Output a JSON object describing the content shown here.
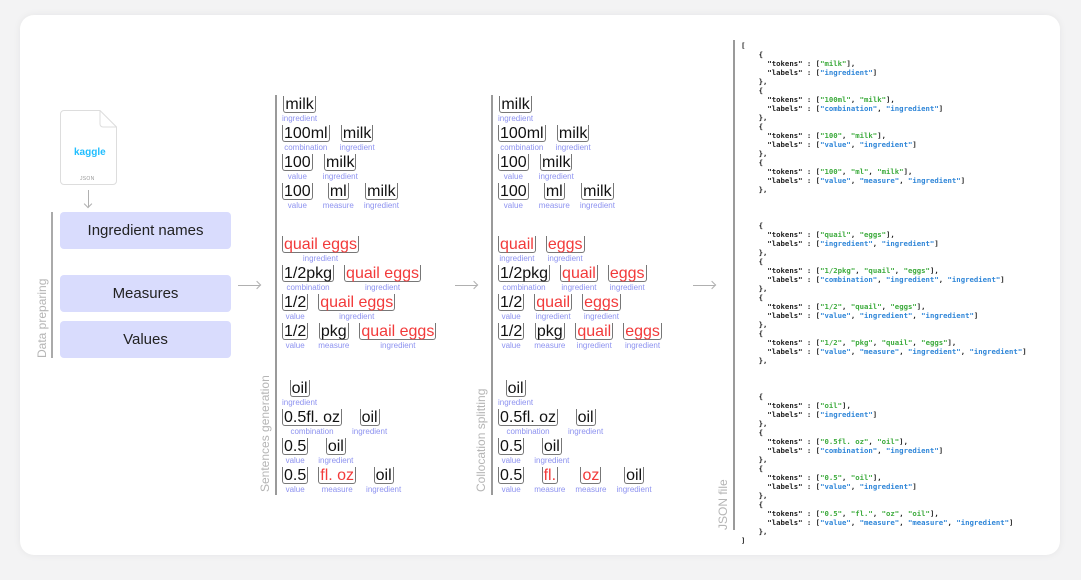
{
  "left": {
    "file_brand": "kaggle",
    "file_type": "JSON",
    "section_label": "Data preparing",
    "boxes": [
      "Ingredient names",
      "Measures",
      "Values"
    ]
  },
  "sentences_generation": {
    "label": "Sentences generation",
    "groups": [
      [
        [
          {
            "t": "milk",
            "l": "ingredient"
          }
        ],
        [
          {
            "t": "100ml",
            "l": "combination"
          },
          {
            "t": "milk",
            "l": "ingredient"
          }
        ],
        [
          {
            "t": "100",
            "l": "value"
          },
          {
            "t": "milk",
            "l": "ingredient"
          }
        ],
        [
          {
            "t": "100",
            "l": "value"
          },
          {
            "t": "ml",
            "l": "measure"
          },
          {
            "t": "milk",
            "l": "ingredient"
          }
        ]
      ],
      [
        [
          {
            "t": "quail eggs",
            "l": "ingredient",
            "red": true
          }
        ],
        [
          {
            "t": "1/2pkg",
            "l": "combination"
          },
          {
            "t": "quail eggs",
            "l": "ingredient",
            "red": true
          }
        ],
        [
          {
            "t": "1/2",
            "l": "value"
          },
          {
            "t": "quail eggs",
            "l": "ingredient",
            "red": true
          }
        ],
        [
          {
            "t": "1/2",
            "l": "value"
          },
          {
            "t": "pkg",
            "l": "measure"
          },
          {
            "t": "quail eggs",
            "l": "ingredient",
            "red": true
          }
        ]
      ],
      [
        [
          {
            "t": "oil",
            "l": "ingredient"
          }
        ],
        [
          {
            "t": "0.5fl. oz",
            "l": "combination"
          },
          {
            "t": "oil",
            "l": "ingredient"
          }
        ],
        [
          {
            "t": "0.5",
            "l": "value"
          },
          {
            "t": "oil",
            "l": "ingredient"
          }
        ],
        [
          {
            "t": "0.5",
            "l": "value"
          },
          {
            "t": "fl. oz",
            "l": "measure",
            "red": true
          },
          {
            "t": "oil",
            "l": "ingredient"
          }
        ]
      ]
    ]
  },
  "collocation_splitting": {
    "label": "Collocation splitting",
    "groups": [
      [
        [
          {
            "t": "milk",
            "l": "ingredient"
          }
        ],
        [
          {
            "t": "100ml",
            "l": "combination"
          },
          {
            "t": "milk",
            "l": "ingredient"
          }
        ],
        [
          {
            "t": "100",
            "l": "value"
          },
          {
            "t": "milk",
            "l": "ingredient"
          }
        ],
        [
          {
            "t": "100",
            "l": "value"
          },
          {
            "t": "ml",
            "l": "measure"
          },
          {
            "t": "milk",
            "l": "ingredient"
          }
        ]
      ],
      [
        [
          {
            "t": "quail",
            "l": "ingredient",
            "red": true
          },
          {
            "t": "eggs",
            "l": "ingredient",
            "red": true
          }
        ],
        [
          {
            "t": "1/2pkg",
            "l": "combination"
          },
          {
            "t": "quail",
            "l": "ingredient",
            "red": true
          },
          {
            "t": "eggs",
            "l": "ingredient",
            "red": true
          }
        ],
        [
          {
            "t": "1/2",
            "l": "value"
          },
          {
            "t": "quail",
            "l": "ingredient",
            "red": true
          },
          {
            "t": "eggs",
            "l": "ingredient",
            "red": true
          }
        ],
        [
          {
            "t": "1/2",
            "l": "value"
          },
          {
            "t": "pkg",
            "l": "measure"
          },
          {
            "t": "quail",
            "l": "ingredient",
            "red": true
          },
          {
            "t": "eggs",
            "l": "ingredient",
            "red": true
          }
        ]
      ],
      [
        [
          {
            "t": "oil",
            "l": "ingredient"
          }
        ],
        [
          {
            "t": "0.5fl. oz",
            "l": "combination"
          },
          {
            "t": "oil",
            "l": "ingredient"
          }
        ],
        [
          {
            "t": "0.5",
            "l": "value"
          },
          {
            "t": "oil",
            "l": "ingredient"
          }
        ],
        [
          {
            "t": "0.5",
            "l": "value"
          },
          {
            "t": "fl.",
            "l": "measure",
            "red": true
          },
          {
            "t": "oz",
            "l": "measure",
            "red": true
          },
          {
            "t": "oil",
            "l": "ingredient"
          }
        ]
      ]
    ]
  },
  "json_file": {
    "label": "JSON file",
    "groups": [
      [
        {
          "tokens": [
            "milk"
          ],
          "labels": [
            "ingredient"
          ]
        },
        {
          "tokens": [
            "100ml",
            "milk"
          ],
          "labels": [
            "combination",
            "ingredient"
          ]
        },
        {
          "tokens": [
            "100",
            "milk"
          ],
          "labels": [
            "value",
            "ingredient"
          ]
        },
        {
          "tokens": [
            "100",
            "ml",
            "milk"
          ],
          "labels": [
            "value",
            "measure",
            "ingredient"
          ]
        }
      ],
      [
        {
          "tokens": [
            "quail",
            "eggs"
          ],
          "labels": [
            "ingredient",
            "ingredient"
          ]
        },
        {
          "tokens": [
            "1/2pkg",
            "quail",
            "eggs"
          ],
          "labels": [
            "combination",
            "ingredient",
            "ingredient"
          ]
        },
        {
          "tokens": [
            "1/2",
            "quail",
            "eggs"
          ],
          "labels": [
            "value",
            "ingredient",
            "ingredient"
          ]
        },
        {
          "tokens": [
            "1/2",
            "pkg",
            "quail",
            "eggs"
          ],
          "labels": [
            "value",
            "measure",
            "ingredient",
            "ingredient"
          ]
        }
      ],
      [
        {
          "tokens": [
            "oil"
          ],
          "labels": [
            "ingredient"
          ]
        },
        {
          "tokens": [
            "0.5fl. oz",
            "oil"
          ],
          "labels": [
            "combination",
            "ingredient"
          ]
        },
        {
          "tokens": [
            "0.5",
            "oil"
          ],
          "labels": [
            "value",
            "ingredient"
          ]
        },
        {
          "tokens": [
            "0.5",
            "fl.",
            "oz",
            "oil"
          ],
          "labels": [
            "value",
            "measure",
            "measure",
            "ingredient"
          ]
        }
      ]
    ]
  },
  "colors": {
    "box": "#d9dcfd",
    "highlight": "#f23a3a",
    "label": "#8d92f0",
    "token_string": "#3dab3d",
    "label_string": "#2f86d8",
    "kaggle": "#20beff"
  }
}
